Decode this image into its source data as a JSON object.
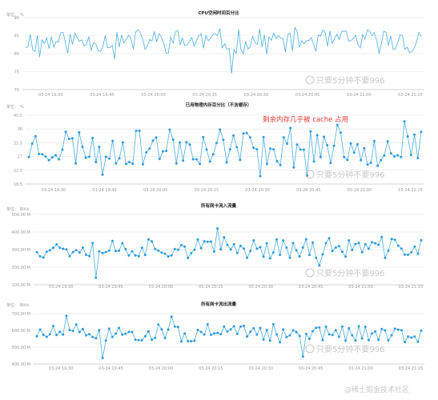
{
  "chart_data": [
    {
      "type": "line",
      "title": "CPU空闲时间百分比",
      "ylabel": "%",
      "unit_prefix": "单位：",
      "y_ticks": [
        "90",
        "85",
        "80",
        "75",
        "70"
      ],
      "ylim": [
        70,
        90
      ],
      "x_ticks": [
        "03-24 19:30",
        "03-24 19:45",
        "03-24 20:00",
        "03-24 20:15",
        "03-24 20:30",
        "03-24 20:45",
        "03-24 21:00",
        "03-24 21:15"
      ],
      "markers": false,
      "grid": true,
      "series": [
        {
          "values": []
        }
      ]
    },
    {
      "type": "line",
      "title": "已用物理内存百分比（不含缓存）",
      "ylabel": "%",
      "unit_prefix": "单位：",
      "y_ticks": [
        "40.5",
        "36",
        "31.5",
        "27",
        "22.5",
        "18.5"
      ],
      "ylim": [
        18.5,
        40.5
      ],
      "x_ticks": [
        "03-24 19:30",
        "03-24 19:45",
        "03-24 20:00",
        "03-24 20:15",
        "03-24 20:30",
        "03-24 20:45",
        "03-24 21:00",
        "03-24 21:15"
      ],
      "markers": true,
      "grid": true,
      "annotation": "剩余内存几乎被 cache 占用",
      "series": [
        {
          "values": []
        }
      ]
    },
    {
      "type": "line",
      "title": "所有网卡流入流量",
      "ylabel": "Bit/s",
      "unit_prefix": "单位：",
      "y_ticks": [
        "500.00 M",
        "400.00 M",
        "300.00 M",
        "200.00 M",
        "100.00 M"
      ],
      "ylim": [
        100,
        500
      ],
      "x_ticks": [
        "03-24 19:30",
        "03-24 19:45",
        "03-24 20:00",
        "03-24 20:15",
        "03-24 20:30",
        "03-24 20:45",
        "03-24 21:00",
        "03-24 21:15"
      ],
      "markers": true,
      "grid": true,
      "series": [
        {
          "values": []
        }
      ]
    },
    {
      "type": "line",
      "title": "所有网卡流出流量",
      "ylabel": "Bit/s",
      "unit_prefix": "单位：",
      "y_ticks": [
        "700.00 M",
        "600.00 M",
        "500.00 M",
        "400.00 M"
      ],
      "ylim": [
        380,
        720
      ],
      "x_ticks": [
        "03-24 19:30",
        "03-24 19:45",
        "03-24 20:00",
        "03-24 20:15",
        "03-24 20:30",
        "03-24 20:45",
        "03-24 21:00",
        "03-24 21:15"
      ],
      "markers": true,
      "grid": true,
      "series": [
        {
          "values": []
        }
      ]
    }
  ],
  "watermark": "只要5分钟不要996",
  "footer_watermark": "@稀土掘金技术社区",
  "colors": {
    "line": "#4aaee0",
    "marker": "#2e9bdb",
    "grid": "#e6e6e6",
    "axis_text": "#999999",
    "title": "#222222",
    "annotation": "#e03c3c",
    "watermark": "#c8c8c8"
  }
}
